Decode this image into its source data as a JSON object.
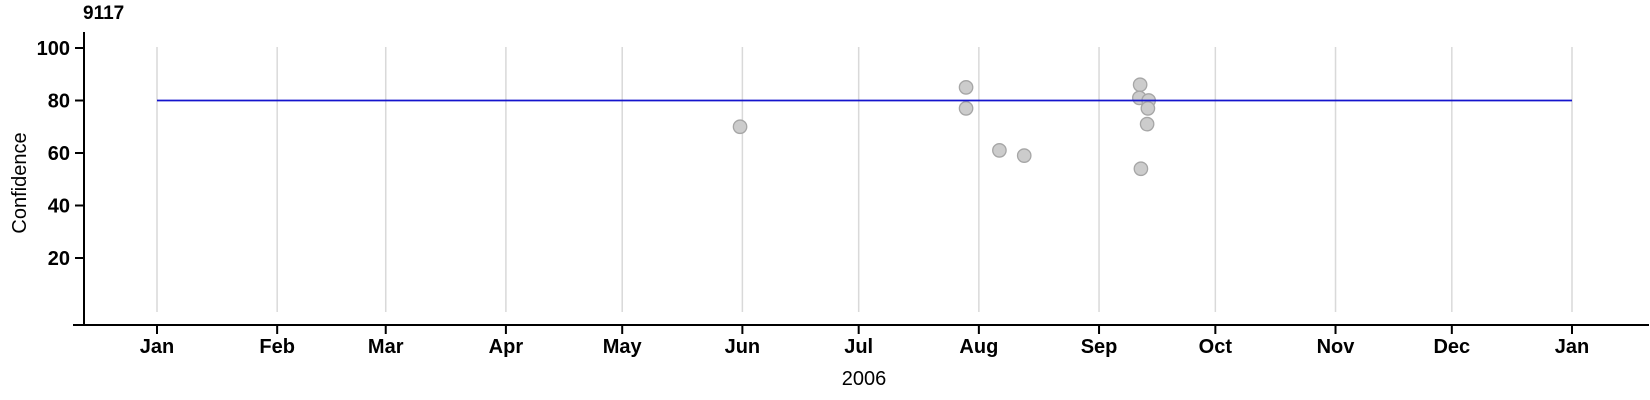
{
  "figure": {
    "background": "#ffffff"
  },
  "chart_data": {
    "type": "scatter",
    "title": "9117",
    "ylabel": "Confidence",
    "xlabel": "2006",
    "grid": "vertical-month-gridlines",
    "legend": "none",
    "x_axis": {
      "span_days": 365,
      "ticks": [
        {
          "label": "Jan",
          "day": 0
        },
        {
          "label": "Feb",
          "day": 31
        },
        {
          "label": "Mar",
          "day": 59
        },
        {
          "label": "Apr",
          "day": 90
        },
        {
          "label": "May",
          "day": 120
        },
        {
          "label": "Jun",
          "day": 151
        },
        {
          "label": "Jul",
          "day": 181
        },
        {
          "label": "Aug",
          "day": 212
        },
        {
          "label": "Sep",
          "day": 243
        },
        {
          "label": "Oct",
          "day": 273
        },
        {
          "label": "Nov",
          "day": 304
        },
        {
          "label": "Dec",
          "day": 334
        },
        {
          "label": "Jan",
          "day": 365
        }
      ]
    },
    "y_axis": {
      "ticks": [
        20,
        40,
        60,
        80,
        100
      ],
      "range": [
        -5,
        106
      ]
    },
    "reference_line": {
      "value": 80,
      "from_day": 0,
      "to_day": 365,
      "color": "#1414cd"
    },
    "points": [
      {
        "date": "2006-05-31",
        "day": 150.4,
        "value": 70
      },
      {
        "date": "2006-07-28",
        "day": 208.7,
        "value": 85
      },
      {
        "date": "2006-07-28",
        "day": 208.7,
        "value": 77
      },
      {
        "date": "2006-08-06",
        "day": 217.3,
        "value": 61
      },
      {
        "date": "2006-08-12",
        "day": 223.7,
        "value": 59
      },
      {
        "date": "2006-09-11",
        "day": 253.6,
        "value": 86
      },
      {
        "date": "2006-09-11",
        "day": 253.4,
        "value": 81
      },
      {
        "date": "2006-09-13",
        "day": 255.8,
        "value": 80
      },
      {
        "date": "2006-09-13",
        "day": 255.6,
        "value": 77
      },
      {
        "date": "2006-09-13",
        "day": 255.4,
        "value": 71
      },
      {
        "date": "2006-09-11",
        "day": 253.8,
        "value": 54
      }
    ],
    "point_style": {
      "fill": "#cccccc",
      "stroke": "#a6a6a6"
    },
    "colors": {
      "axis": "#000000",
      "grid": "#d9d9d9",
      "text": "#000000"
    }
  }
}
